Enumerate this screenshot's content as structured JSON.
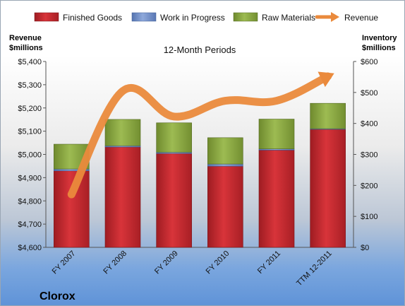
{
  "chart_data": {
    "type": "bar",
    "subtitle": "12-Month Periods",
    "company": "Clorox",
    "left_axis": {
      "title_line1": "Revenue",
      "title_line2": "$millions",
      "min": 4600,
      "max": 5400,
      "step": 100,
      "tick_labels": [
        "$4,600",
        "$4,700",
        "$4,800",
        "$4,900",
        "$5,000",
        "$5,100",
        "$5,200",
        "$5,300",
        "$5,400"
      ]
    },
    "right_axis": {
      "title_line1": "Inventory",
      "title_line2": "$millions",
      "min": 0,
      "max": 600,
      "step": 100,
      "tick_labels": [
        "$0",
        "$100",
        "$200",
        "$300",
        "$400",
        "$500",
        "$600"
      ]
    },
    "categories": [
      "FY 2007",
      "FY 2008",
      "FY 2009",
      "FY 2010",
      "FY 2011",
      "TTM 12-2011"
    ],
    "series": [
      {
        "name": "Finished Goods",
        "kind": "stack",
        "color": "#c0272d",
        "values": [
          247,
          324,
          303,
          262,
          314,
          381
        ]
      },
      {
        "name": "Work in Progress",
        "kind": "stack",
        "color": "#6f8fc9",
        "values": [
          6,
          4,
          4,
          7,
          4,
          2
        ]
      },
      {
        "name": "Raw Materials",
        "kind": "stack",
        "color": "#8aaa3e",
        "values": [
          80,
          85,
          95,
          85,
          96,
          82
        ]
      },
      {
        "name": "Revenue",
        "kind": "line",
        "color": "#ea8a3c",
        "values": [
          4828,
          5273,
          5163,
          5231,
          5231,
          5336
        ]
      }
    ],
    "legend_position": "top",
    "grid": false
  }
}
